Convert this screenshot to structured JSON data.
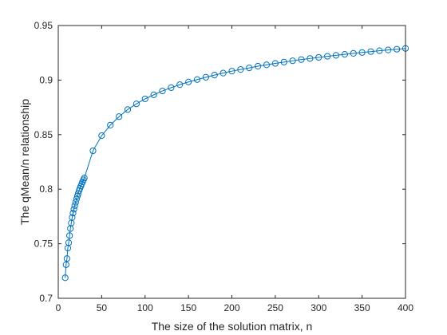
{
  "chart_data": {
    "type": "line",
    "title": "",
    "xlabel": "The size of the solution matrix, n",
    "ylabel": "The qMean/n relationship",
    "xlim": [
      0,
      400
    ],
    "ylim": [
      0.7,
      0.95
    ],
    "xticks": [
      0,
      50,
      100,
      150,
      200,
      250,
      300,
      350,
      400
    ],
    "xtick_labels": [
      "0",
      "50",
      "100",
      "150",
      "200",
      "250",
      "300",
      "350",
      "400"
    ],
    "yticks": [
      0.7,
      0.75,
      0.8,
      0.85,
      0.9,
      0.95
    ],
    "ytick_labels": [
      "0.7",
      "0.75",
      "0.8",
      "0.85",
      "0.9",
      "0.95"
    ],
    "grid": false,
    "legend": "none",
    "series": [
      {
        "color": "#0072BD",
        "marker": "circle",
        "x": [
          8,
          9,
          10,
          11,
          12,
          13,
          14,
          15,
          16,
          17,
          18,
          19,
          20,
          21,
          22,
          23,
          24,
          25,
          26,
          27,
          28,
          29,
          30,
          40,
          50,
          60,
          70,
          80,
          90,
          100,
          110,
          120,
          130,
          140,
          150,
          160,
          170,
          180,
          190,
          200,
          210,
          220,
          230,
          240,
          250,
          260,
          270,
          280,
          290,
          300,
          310,
          320,
          330,
          340,
          350,
          360,
          370,
          380,
          390,
          400
        ],
        "y": [
          0.7188,
          0.7308,
          0.7364,
          0.746,
          0.751,
          0.7575,
          0.7639,
          0.769,
          0.7741,
          0.7781,
          0.7816,
          0.7849,
          0.788,
          0.7909,
          0.7936,
          0.796,
          0.7987,
          0.8008,
          0.8028,
          0.8048,
          0.8067,
          0.8086,
          0.8103,
          0.8352,
          0.8491,
          0.8587,
          0.8665,
          0.873,
          0.8782,
          0.8828,
          0.8865,
          0.89,
          0.8931,
          0.8958,
          0.8983,
          0.9005,
          0.9026,
          0.9046,
          0.9064,
          0.9082,
          0.9097,
          0.9112,
          0.9127,
          0.914,
          0.9153,
          0.9165,
          0.9177,
          0.9188,
          0.9198,
          0.9208,
          0.9218,
          0.9227,
          0.9236,
          0.9245,
          0.9253,
          0.9261,
          0.9269,
          0.9276,
          0.9283,
          0.929
        ]
      }
    ]
  }
}
